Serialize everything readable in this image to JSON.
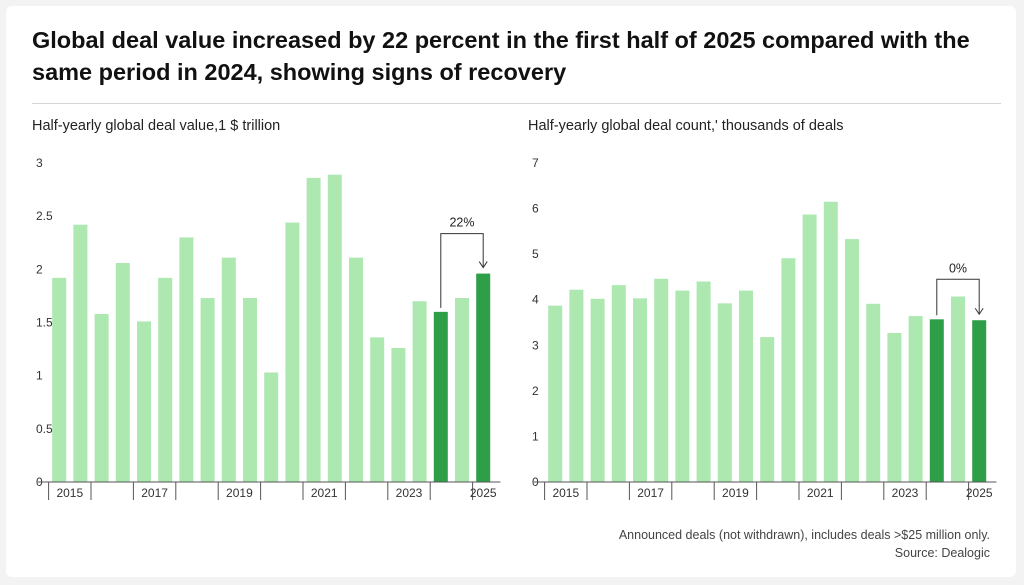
{
  "headline": "Global deal value increased by 22 percent in the first half of 2025 compared with the same period in 2024, showing signs of recovery",
  "footnote": "Announced deals (not withdrawn), includes deals >$25 million only.",
  "source": "Source: Dealogic",
  "colors": {
    "light": "#ace8b0",
    "dark": "#2e9e49",
    "axis": "#555555",
    "text": "#333333"
  },
  "chart_data": [
    {
      "type": "bar",
      "title": "Half-yearly global deal value,1 $ trillion",
      "ylim": [
        0,
        3
      ],
      "yticks": [
        "0",
        "0.5",
        "1",
        "1.5",
        "2",
        "2.5",
        "3"
      ],
      "x_tick_labels": [
        "2015",
        "2017",
        "2019",
        "2021",
        "2023",
        "2025"
      ],
      "values": [
        1.92,
        2.42,
        1.58,
        2.06,
        1.51,
        1.92,
        2.3,
        1.73,
        2.11,
        1.73,
        1.03,
        2.44,
        2.86,
        2.89,
        2.11,
        1.36,
        1.26,
        1.7,
        1.6,
        1.73,
        1.96
      ],
      "highlight_indices": [
        18,
        20
      ],
      "annotation": {
        "label": "22%",
        "from": 18,
        "to": 20
      }
    },
    {
      "type": "bar",
      "title": "Half-yearly global deal count,' thousands of deals",
      "ylim": [
        0,
        7
      ],
      "yticks": [
        "0",
        "1",
        "2",
        "3",
        "4",
        "5",
        "6",
        "7"
      ],
      "x_tick_labels": [
        "2015",
        "2017",
        "2019",
        "2021",
        "2023",
        "2025"
      ],
      "values": [
        3.87,
        4.22,
        4.02,
        4.32,
        4.03,
        4.46,
        4.2,
        4.4,
        3.92,
        4.2,
        3.18,
        4.91,
        5.87,
        6.15,
        5.33,
        3.91,
        3.27,
        3.64,
        3.57,
        4.07,
        3.55
      ],
      "highlight_indices": [
        18,
        20
      ],
      "annotation": {
        "label": "0%",
        "from": 18,
        "to": 20
      }
    }
  ]
}
